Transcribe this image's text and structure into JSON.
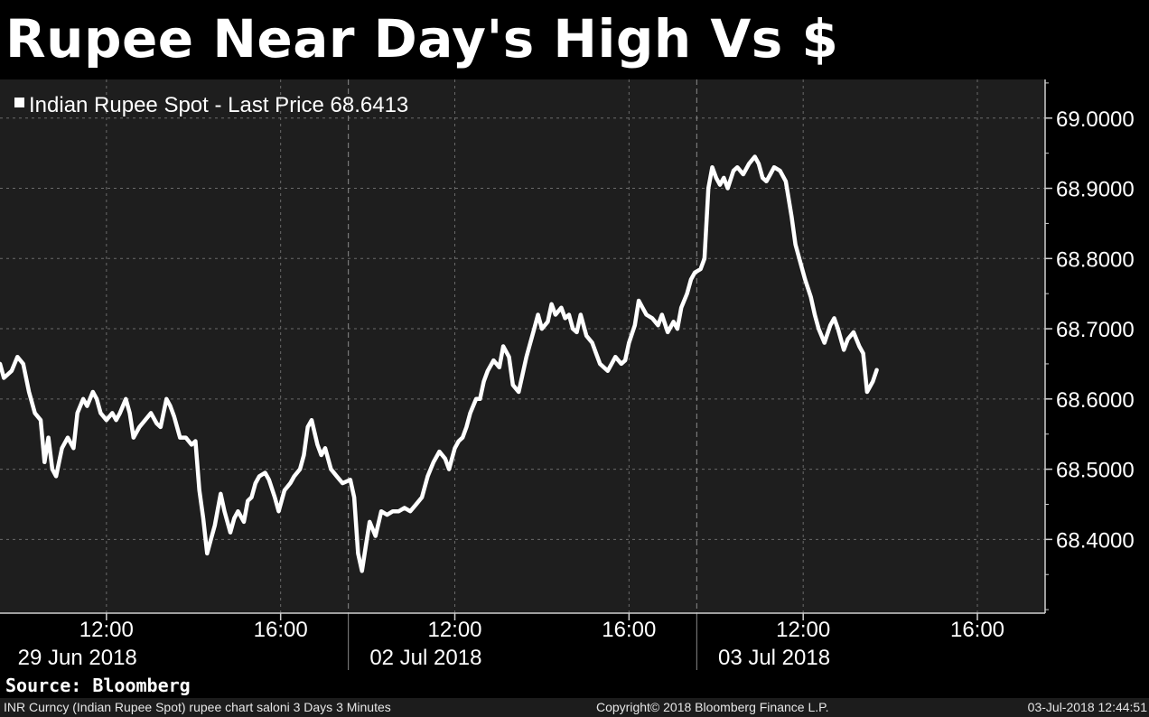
{
  "title": "Rupee Near Day's High Vs $",
  "chart_data": {
    "type": "line",
    "series": [
      {
        "name": "Indian Rupee Spot - Last Price 68.6413",
        "color": "#ffffff",
        "points": [
          [
            0.0,
            68.65
          ],
          [
            0.1,
            68.63
          ],
          [
            0.3,
            68.64
          ],
          [
            0.45,
            68.66
          ],
          [
            0.6,
            68.65
          ],
          [
            0.75,
            68.61
          ],
          [
            0.9,
            68.58
          ],
          [
            1.05,
            68.57
          ],
          [
            1.15,
            68.51
          ],
          [
            1.25,
            68.545
          ],
          [
            1.35,
            68.5
          ],
          [
            1.45,
            68.49
          ],
          [
            1.6,
            68.53
          ],
          [
            1.75,
            68.545
          ],
          [
            1.9,
            68.53
          ],
          [
            2.0,
            68.58
          ],
          [
            2.15,
            68.6
          ],
          [
            2.25,
            68.59
          ],
          [
            2.4,
            68.61
          ],
          [
            2.5,
            68.6
          ],
          [
            2.6,
            68.58
          ],
          [
            2.75,
            68.57
          ],
          [
            2.9,
            68.58
          ],
          [
            3.0,
            68.57
          ],
          [
            3.1,
            68.58
          ],
          [
            3.25,
            68.6
          ],
          [
            3.35,
            68.58
          ],
          [
            3.45,
            68.545
          ],
          [
            3.6,
            68.56
          ],
          [
            3.75,
            68.57
          ],
          [
            3.9,
            68.58
          ],
          [
            4.05,
            68.565
          ],
          [
            4.15,
            68.56
          ],
          [
            4.3,
            68.6
          ],
          [
            4.4,
            68.59
          ],
          [
            4.5,
            68.575
          ],
          [
            4.65,
            68.545
          ],
          [
            4.8,
            68.545
          ],
          [
            4.95,
            68.535
          ],
          [
            5.05,
            68.54
          ],
          [
            5.15,
            68.47
          ],
          [
            5.25,
            68.43
          ],
          [
            5.35,
            68.38
          ],
          [
            5.45,
            68.4
          ],
          [
            5.55,
            68.42
          ],
          [
            5.7,
            68.465
          ],
          [
            5.8,
            68.44
          ],
          [
            5.95,
            68.41
          ],
          [
            6.05,
            68.43
          ],
          [
            6.15,
            68.44
          ],
          [
            6.3,
            68.425
          ],
          [
            6.4,
            68.455
          ],
          [
            6.5,
            68.46
          ],
          [
            6.6,
            68.48
          ],
          [
            6.7,
            68.49
          ],
          [
            6.85,
            68.495
          ],
          [
            6.95,
            68.485
          ],
          [
            7.1,
            68.46
          ],
          [
            7.2,
            68.44
          ],
          [
            7.35,
            68.47
          ],
          [
            7.5,
            68.48
          ],
          [
            7.6,
            68.49
          ],
          [
            7.75,
            68.5
          ],
          [
            7.85,
            68.52
          ],
          [
            7.95,
            68.56
          ],
          [
            8.05,
            68.57
          ],
          [
            8.2,
            68.535
          ],
          [
            8.3,
            68.52
          ],
          [
            8.4,
            68.53
          ],
          [
            8.55,
            68.5
          ],
          [
            8.7,
            68.49
          ],
          [
            8.85,
            68.48
          ],
          [
            9.05,
            68.485
          ],
          [
            9.15,
            68.46
          ],
          [
            9.25,
            68.38
          ],
          [
            9.35,
            68.355
          ],
          [
            9.45,
            68.39
          ],
          [
            9.55,
            68.425
          ],
          [
            9.7,
            68.405
          ],
          [
            9.85,
            68.44
          ],
          [
            10.0,
            68.435
          ],
          [
            10.15,
            68.44
          ],
          [
            10.3,
            68.44
          ],
          [
            10.45,
            68.445
          ],
          [
            10.6,
            68.44
          ],
          [
            10.75,
            68.45
          ],
          [
            10.9,
            68.46
          ],
          [
            11.05,
            68.49
          ],
          [
            11.2,
            68.51
          ],
          [
            11.35,
            68.525
          ],
          [
            11.5,
            68.515
          ],
          [
            11.6,
            68.5
          ],
          [
            11.75,
            68.53
          ],
          [
            11.85,
            68.54
          ],
          [
            11.95,
            68.545
          ],
          [
            12.05,
            68.56
          ],
          [
            12.15,
            68.58
          ],
          [
            12.3,
            68.6
          ],
          [
            12.4,
            68.6
          ],
          [
            12.5,
            68.625
          ],
          [
            12.6,
            68.64
          ],
          [
            12.75,
            68.655
          ],
          [
            12.9,
            68.645
          ],
          [
            13.0,
            68.675
          ],
          [
            13.15,
            68.66
          ],
          [
            13.25,
            68.62
          ],
          [
            13.4,
            68.61
          ],
          [
            13.5,
            68.635
          ],
          [
            13.6,
            68.66
          ],
          [
            13.7,
            68.68
          ],
          [
            13.8,
            68.7
          ],
          [
            13.9,
            68.72
          ],
          [
            14.0,
            68.7
          ],
          [
            14.15,
            68.71
          ],
          [
            14.25,
            68.735
          ],
          [
            14.35,
            68.72
          ],
          [
            14.5,
            68.73
          ],
          [
            14.6,
            68.715
          ],
          [
            14.7,
            68.72
          ],
          [
            14.8,
            68.7
          ],
          [
            14.9,
            68.695
          ],
          [
            15.0,
            68.72
          ],
          [
            15.15,
            68.69
          ],
          [
            15.3,
            68.68
          ],
          [
            15.4,
            68.665
          ],
          [
            15.5,
            68.65
          ],
          [
            15.6,
            68.645
          ],
          [
            15.7,
            68.64
          ],
          [
            15.8,
            68.65
          ],
          [
            15.9,
            68.66
          ],
          [
            16.05,
            68.65
          ],
          [
            16.15,
            68.655
          ],
          [
            16.25,
            68.68
          ],
          [
            16.4,
            68.705
          ],
          [
            16.5,
            68.74
          ],
          [
            16.6,
            68.73
          ],
          [
            16.7,
            68.72
          ],
          [
            16.85,
            68.715
          ],
          [
            17.0,
            68.705
          ],
          [
            17.1,
            68.72
          ],
          [
            17.25,
            68.695
          ],
          [
            17.4,
            68.71
          ],
          [
            17.5,
            68.7
          ],
          [
            17.6,
            68.73
          ],
          [
            17.75,
            68.75
          ],
          [
            17.85,
            68.77
          ],
          [
            17.95,
            68.78
          ],
          [
            18.1,
            68.785
          ],
          [
            18.2,
            68.8
          ],
          [
            18.3,
            68.9
          ],
          [
            18.4,
            68.93
          ],
          [
            18.5,
            68.915
          ],
          [
            18.6,
            68.905
          ],
          [
            18.7,
            68.915
          ],
          [
            18.8,
            68.9
          ],
          [
            18.95,
            68.925
          ],
          [
            19.05,
            68.93
          ],
          [
            19.2,
            68.92
          ],
          [
            19.35,
            68.935
          ],
          [
            19.5,
            68.945
          ],
          [
            19.6,
            68.935
          ],
          [
            19.7,
            68.915
          ],
          [
            19.8,
            68.91
          ],
          [
            19.9,
            68.92
          ],
          [
            20.0,
            68.93
          ],
          [
            20.15,
            68.925
          ],
          [
            20.3,
            68.91
          ],
          [
            20.45,
            68.86
          ],
          [
            20.55,
            68.82
          ],
          [
            20.7,
            68.79
          ],
          [
            20.8,
            68.77
          ],
          [
            20.95,
            68.745
          ],
          [
            21.05,
            68.72
          ],
          [
            21.15,
            68.7
          ],
          [
            21.3,
            68.68
          ],
          [
            21.45,
            68.705
          ],
          [
            21.55,
            68.715
          ],
          [
            21.65,
            68.7
          ],
          [
            21.8,
            68.67
          ],
          [
            21.9,
            68.685
          ],
          [
            22.05,
            68.695
          ],
          [
            22.2,
            68.675
          ],
          [
            22.3,
            68.665
          ],
          [
            22.4,
            68.61
          ],
          [
            22.55,
            68.625
          ],
          [
            22.65,
            68.6413
          ]
        ]
      }
    ],
    "x_scale": "hours (3-day intraday session axis)",
    "x_ticks": [
      "12:00",
      "16:00",
      "12:00",
      "16:00",
      "12:00",
      "16:00"
    ],
    "x_tick_hours": [
      2.75,
      7.25,
      11.75,
      16.25,
      20.75,
      25.25
    ],
    "x_day_labels": [
      "29 Jun 2018",
      "02 Jul 2018",
      "03 Jul 2018"
    ],
    "x_day_label_hours": [
      2.0,
      11.0,
      20.0
    ],
    "x_day_separators": [
      9.0,
      18.0
    ],
    "xlim": [
      0,
      27
    ],
    "y_ticks": [
      "69.0000",
      "68.9000",
      "68.8000",
      "68.7000",
      "68.6000",
      "68.5000",
      "68.4000"
    ],
    "y_tick_values": [
      69.0,
      68.9,
      68.8,
      68.7,
      68.6,
      68.5,
      68.4
    ],
    "ylim": [
      68.295,
      69.055
    ],
    "grid": true,
    "legend": "top-left"
  },
  "source": "Source: Bloomberg",
  "footer": {
    "left": "INR Curncy (Indian Rupee Spot) rupee chart saloni 3 Days 3 Minutes",
    "middle": "Copyright© 2018 Bloomberg Finance L.P.",
    "right": "03-Jul-2018 12:44:51"
  },
  "colors": {
    "background": "#000000",
    "plot_area": "#1e1e1e",
    "line": "#ffffff",
    "grid": "#6a6a6a"
  }
}
